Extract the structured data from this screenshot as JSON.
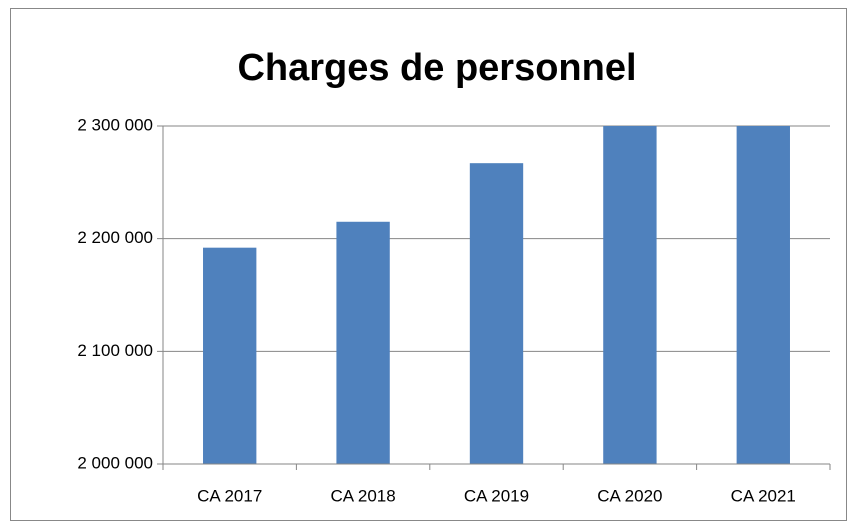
{
  "chart_data": {
    "type": "bar",
    "title": "Charges de personnel",
    "categories": [
      "CA 2017",
      "CA 2018",
      "CA 2019",
      "CA 2020",
      "CA 2021"
    ],
    "values": [
      2192000,
      2215000,
      2267000,
      2300000,
      2300000
    ],
    "color": "#4f81bd",
    "ylim": [
      2000000,
      2300000
    ],
    "yticks": [
      {
        "value": 2000000,
        "label": "2 000 000"
      },
      {
        "value": 2100000,
        "label": "2 100 000"
      },
      {
        "value": 2200000,
        "label": "2 200 000"
      },
      {
        "value": 2300000,
        "label": "2 300 000"
      }
    ],
    "grid": true
  }
}
